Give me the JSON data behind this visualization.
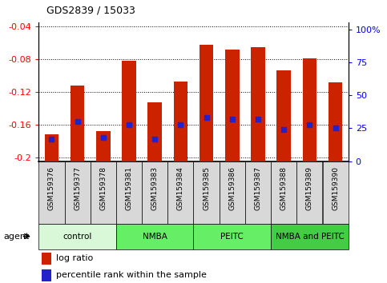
{
  "title": "GDS2839 / 15033",
  "samples": [
    "GSM159376",
    "GSM159377",
    "GSM159378",
    "GSM159381",
    "GSM159383",
    "GSM159384",
    "GSM159385",
    "GSM159386",
    "GSM159387",
    "GSM159388",
    "GSM159389",
    "GSM159390"
  ],
  "log_ratio": [
    -0.172,
    -0.112,
    -0.168,
    -0.082,
    -0.133,
    -0.107,
    -0.062,
    -0.068,
    -0.065,
    -0.093,
    -0.079,
    -0.108
  ],
  "percentile_rank": [
    17,
    30,
    18,
    28,
    17,
    28,
    33,
    32,
    32,
    24,
    28,
    25
  ],
  "ylim_left": [
    -0.205,
    -0.035
  ],
  "ylim_right": [
    0,
    105
  ],
  "yticks_left": [
    -0.2,
    -0.16,
    -0.12,
    -0.08,
    -0.04
  ],
  "ytick_labels_left": [
    "-0.2",
    "-0.16",
    "-0.12",
    "-0.08",
    "-0.04"
  ],
  "yticks_right": [
    0,
    25,
    50,
    75,
    100
  ],
  "ytick_labels_right": [
    "0",
    "25",
    "50",
    "75",
    "100%"
  ],
  "groups": [
    {
      "label": "control",
      "start": 0,
      "end": 3,
      "color": "#d8f8d8"
    },
    {
      "label": "NMBA",
      "start": 3,
      "end": 6,
      "color": "#66ee66"
    },
    {
      "label": "PEITC",
      "start": 6,
      "end": 9,
      "color": "#66ee66"
    },
    {
      "label": "NMBA and PEITC",
      "start": 9,
      "end": 12,
      "color": "#44cc44"
    }
  ],
  "bar_color": "#cc2200",
  "percentile_color": "#2222cc",
  "bar_width": 0.55,
  "legend_items": [
    "log ratio",
    "percentile rank within the sample"
  ],
  "sample_bg": "#d8d8d8",
  "agent_label": "agent"
}
